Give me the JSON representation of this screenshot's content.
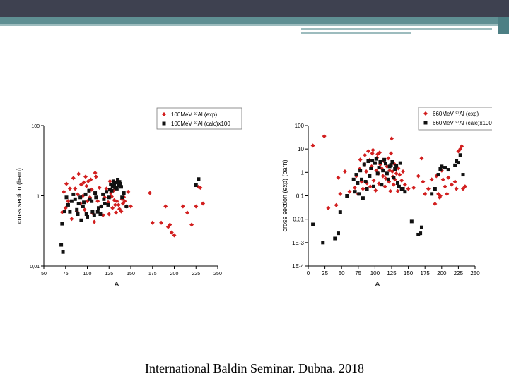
{
  "footer": {
    "text": "International Baldin Seminar. Dubna. 2018"
  },
  "colors": {
    "exp": "#d21f1f",
    "calc": "#111111"
  },
  "chart_data": [
    {
      "type": "scatter",
      "xlabel": "A",
      "ylabel": "cross section (barn)",
      "xlim": [
        50,
        250
      ],
      "ylim": [
        0.01,
        100
      ],
      "yscale": "log",
      "xticks": [
        "50",
        "75",
        "100",
        "125",
        "150",
        "175",
        "200",
        "225",
        "250"
      ],
      "yticks": [
        "0,01",
        "1",
        "100"
      ],
      "legend_placement": "top-right",
      "legend": [
        "100MeV ²⁷Al (exp)",
        "100MeV ²⁷Al (calc)x100"
      ],
      "series": [
        {
          "name": "100MeV ²⁷Al (exp)",
          "x": [
            71,
            73,
            75,
            76,
            78,
            80,
            82,
            84,
            86,
            88,
            89,
            90,
            92,
            93,
            95,
            96,
            97,
            98,
            99,
            100,
            101,
            102,
            103,
            104,
            105,
            106,
            108,
            109,
            110,
            112,
            114,
            116,
            118,
            120,
            122,
            124,
            125,
            126,
            127,
            128,
            129,
            130,
            131,
            132,
            133,
            134,
            135,
            136,
            137,
            138,
            139,
            140,
            141,
            142,
            143,
            145,
            147,
            150,
            172,
            175,
            185,
            190,
            193,
            195,
            197,
            200,
            210,
            215,
            220,
            225,
            228,
            230,
            233
          ],
          "y": [
            0.34,
            1.3,
            0.45,
            2.2,
            0.7,
            1.6,
            0.22,
            3.2,
            1.6,
            0.36,
            1.1,
            4.2,
            0.6,
            2.1,
            1.0,
            2.4,
            0.4,
            3.5,
            1.9,
            0.7,
            2.6,
            1.4,
            0.9,
            2.9,
            1.5,
            0.32,
            0.18,
            4.5,
            3.5,
            0.7,
            1.7,
            0.5,
            0.28,
            0.9,
            1.6,
            0.65,
            0.3,
            2.6,
            1.2,
            0.95,
            0.45,
            1.4,
            0.75,
            0.55,
            0.33,
            0.7,
            2.8,
            0.55,
            0.42,
            1.9,
            0.36,
            0.8,
            0.6,
            0.92,
            0.7,
            0.5,
            1.3,
            0.5,
            1.2,
            0.17,
            0.17,
            0.5,
            0.13,
            0.15,
            0.09,
            0.075,
            0.5,
            0.33,
            0.15,
            0.5,
            1.8,
            1.7,
            0.6
          ]
        },
        {
          "name": "100MeV ²⁷Al (calc)x100",
          "x": [
            70,
            71,
            72,
            74,
            76,
            78,
            80,
            82,
            84,
            86,
            88,
            89,
            90,
            92,
            93,
            95,
            96,
            98,
            99,
            100,
            102,
            103,
            105,
            106,
            108,
            109,
            110,
            112,
            113,
            115,
            116,
            118,
            119,
            120,
            122,
            124,
            125,
            126,
            127,
            128,
            129,
            130,
            131,
            132,
            133,
            134,
            135,
            136,
            137,
            138,
            139,
            140,
            142,
            145,
            225,
            228
          ],
          "y": [
            0.04,
            0.16,
            0.025,
            0.36,
            0.9,
            0.55,
            0.35,
            0.7,
            1.1,
            0.8,
            0.4,
            0.3,
            0.6,
            0.9,
            0.2,
            0.5,
            0.65,
            1.1,
            0.3,
            0.25,
            1.4,
            0.8,
            0.7,
            0.35,
            0.28,
            1.2,
            0.9,
            0.35,
            0.45,
            0.3,
            0.5,
            1.1,
            0.8,
            0.6,
            1.3,
            0.55,
            0.9,
            1.5,
            2.1,
            1.4,
            1.9,
            2.6,
            2.2,
            1.7,
            2.4,
            1.6,
            2.9,
            2.0,
            2.5,
            2.2,
            1.8,
            0.9,
            1.2,
            0.5,
            2.0,
            3.0
          ]
        }
      ]
    },
    {
      "type": "scatter",
      "xlabel": "A",
      "ylabel": "cross section (exp) (barn)",
      "xlim": [
        0,
        250
      ],
      "ylim": [
        0.0001,
        100
      ],
      "yscale": "log",
      "xticks": [
        "0",
        "25",
        "50",
        "75",
        "100",
        "125",
        "150",
        "175",
        "200",
        "225",
        "250"
      ],
      "yticks": [
        "1E-4",
        "1E-3",
        "0,01",
        "0,1",
        "1",
        "10",
        "100"
      ],
      "legend_placement": "top-right",
      "legend": [
        "660MeV ²⁷Al (exp)",
        "660MeV ²⁷Al (calc)x100"
      ],
      "series": [
        {
          "name": "660MeV ²⁷Al (exp)",
          "x": [
            7,
            24,
            30,
            42,
            45,
            48,
            55,
            62,
            70,
            72,
            75,
            77,
            78,
            80,
            82,
            84,
            85,
            87,
            88,
            90,
            92,
            93,
            95,
            96,
            97,
            98,
            100,
            101,
            102,
            103,
            104,
            105,
            106,
            107,
            108,
            110,
            112,
            113,
            115,
            116,
            118,
            120,
            121,
            122,
            123,
            124,
            125,
            126,
            127,
            128,
            129,
            130,
            132,
            134,
            135,
            137,
            140,
            142,
            145,
            150,
            158,
            165,
            170,
            172,
            175,
            180,
            185,
            190,
            192,
            195,
            197,
            198,
            200,
            202,
            205,
            208,
            210,
            215,
            220,
            222,
            225,
            228,
            230,
            232,
            235
          ],
          "y": [
            14,
            35,
            0.03,
            0.04,
            0.6,
            0.12,
            1.1,
            0.15,
            0.22,
            0.7,
            0.12,
            1.4,
            3.5,
            0.4,
            0.2,
            2.2,
            5.5,
            1.1,
            0.35,
            8,
            3.4,
            0.25,
            1.8,
            6.5,
            9,
            0.45,
            2.5,
            0.17,
            1.2,
            4.2,
            6,
            0.9,
            0.33,
            7,
            2.2,
            1.5,
            0.7,
            3.1,
            0.25,
            0.55,
            1.8,
            4,
            0.4,
            1.2,
            0.16,
            6.5,
            28,
            1.1,
            0.65,
            0.3,
            2.3,
            0.5,
            0.9,
            0.16,
            1.5,
            0.8,
            0.45,
            1.1,
            0.3,
            0.2,
            0.22,
            0.7,
            4,
            0.4,
            0.12,
            0.2,
            0.5,
            0.045,
            0.7,
            0.12,
            0.085,
            0.1,
            1.2,
            0.5,
            0.25,
            0.12,
            0.6,
            0.3,
            0.4,
            0.2,
            8,
            10,
            13,
            0.2,
            0.25
          ]
        },
        {
          "name": "660MeV ²⁷Al (calc)x100",
          "x": [
            7,
            22,
            40,
            45,
            48,
            58,
            68,
            70,
            72,
            74,
            76,
            78,
            80,
            82,
            84,
            86,
            88,
            90,
            92,
            94,
            96,
            98,
            100,
            102,
            104,
            106,
            108,
            110,
            112,
            114,
            116,
            118,
            120,
            122,
            124,
            126,
            128,
            130,
            132,
            134,
            136,
            138,
            140,
            142,
            145,
            155,
            165,
            168,
            170,
            185,
            190,
            195,
            198,
            200,
            205,
            210,
            220,
            222,
            225,
            228,
            232
          ],
          "y": [
            0.006,
            0.001,
            0.0015,
            0.0025,
            0.02,
            0.1,
            0.5,
            0.15,
            0.8,
            0.35,
            0.12,
            1.2,
            0.5,
            0.08,
            2.2,
            0.4,
            0.2,
            3,
            0.7,
            1.5,
            3.2,
            0.25,
            2.5,
            3.8,
            0.9,
            1.6,
            2.8,
            0.3,
            1.2,
            3.5,
            2.4,
            0.9,
            0.5,
            1.8,
            2.1,
            2.8,
            0.6,
            1.4,
            1.9,
            0.35,
            0.25,
            2.5,
            0.2,
            0.2,
            0.15,
            0.008,
            0.0022,
            0.0025,
            0.0045,
            0.12,
            0.2,
            0.8,
            1.4,
            1.8,
            1.6,
            1.3,
            2,
            3,
            2.6,
            5.5,
            0.8
          ]
        }
      ]
    }
  ]
}
